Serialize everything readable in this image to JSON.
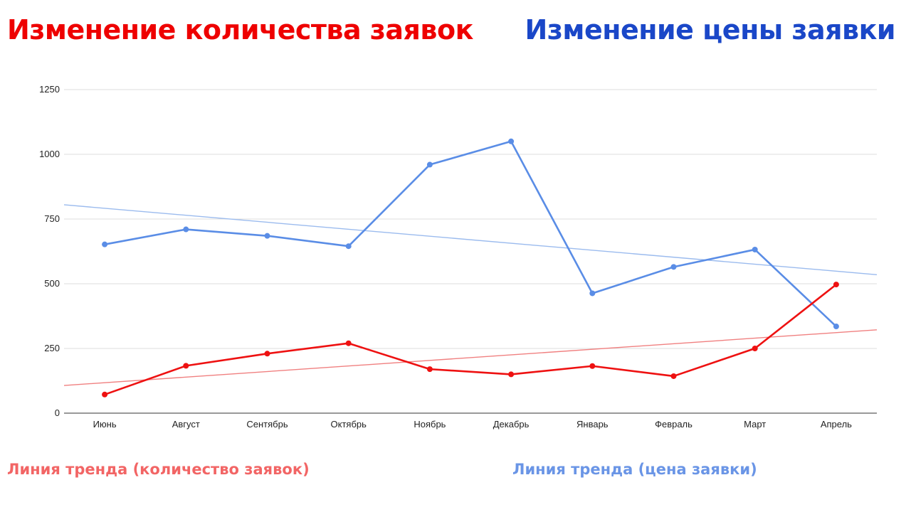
{
  "colors": {
    "count": "#ee0000",
    "price": "#1a47c8",
    "count_line": "#ee1111",
    "price_line": "#5a8de6",
    "count_trend": "#f08080",
    "price_trend": "#9bbbee",
    "count_caption": "#f26565",
    "price_caption": "#6a95e6",
    "grid": "#dddddd",
    "axis": "#333333"
  },
  "headings": {
    "count_title": "Изменение количества заявок",
    "price_title": "Изменение цены заявки"
  },
  "captions": {
    "count_trend": "Линия тренда (количество заявок)",
    "price_trend": "Линия тренда (цена заявки)"
  },
  "chart_data": {
    "type": "line",
    "categories": [
      "Июнь",
      "Август",
      "Сентябрь",
      "Октябрь",
      "Ноябрь",
      "Декабрь",
      "Январь",
      "Февраль",
      "Март",
      "Апрель"
    ],
    "ylim": [
      0,
      1250
    ],
    "yticks": [
      0,
      250,
      500,
      750,
      1000,
      1250
    ],
    "grid": true,
    "series": [
      {
        "key": "price",
        "values": [
          652,
          710,
          685,
          645,
          960,
          1050,
          463,
          565,
          632,
          335
        ]
      },
      {
        "key": "count",
        "values": [
          72,
          183,
          230,
          270,
          170,
          150,
          182,
          143,
          250,
          497
        ]
      }
    ],
    "trendlines": [
      {
        "key": "price",
        "start": 805,
        "end": 535
      },
      {
        "key": "count",
        "start": 107,
        "end": 322
      }
    ]
  }
}
